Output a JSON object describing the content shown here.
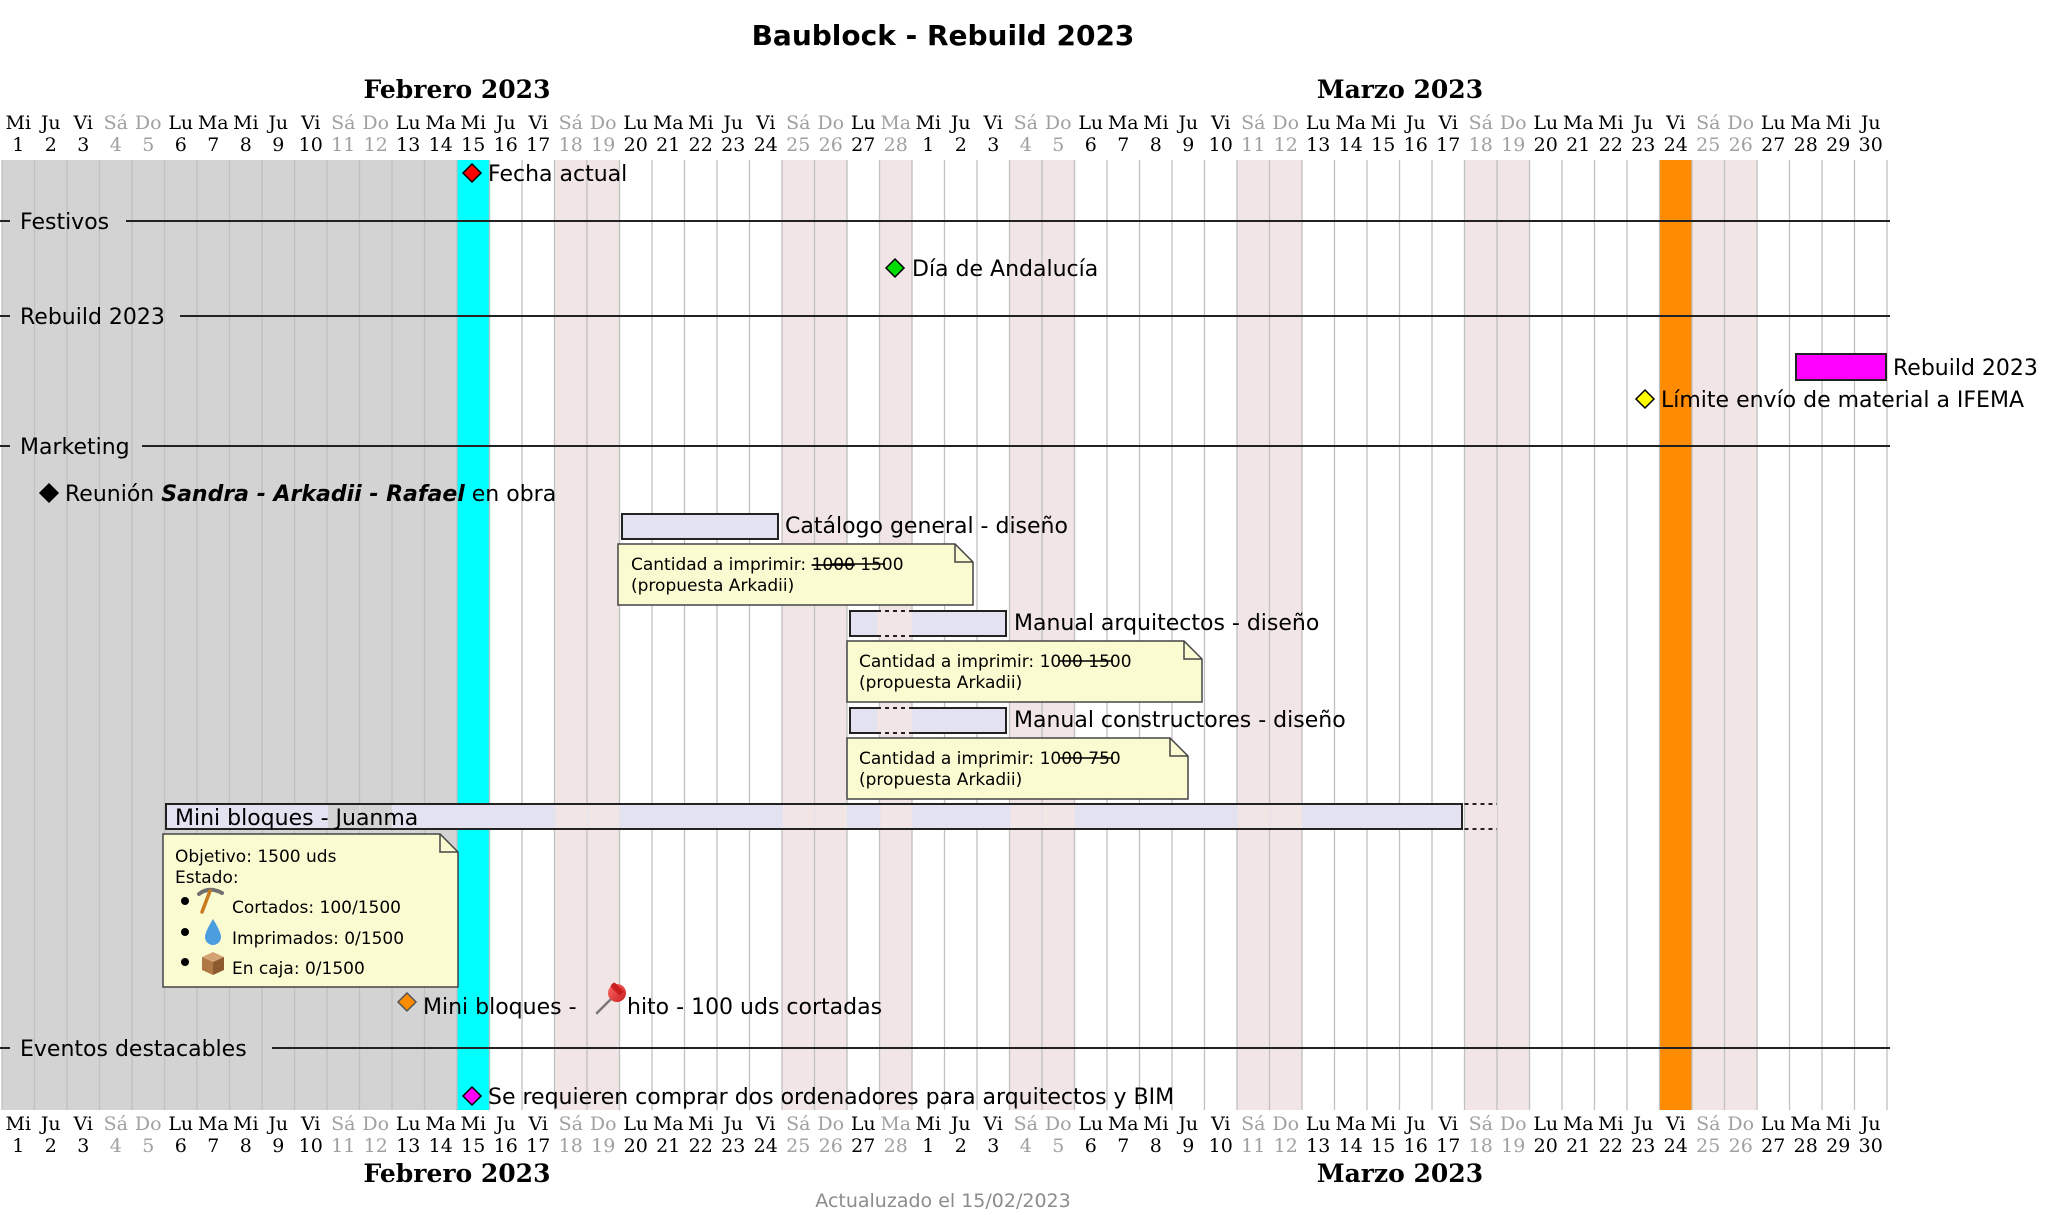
{
  "title": "Baublock - Rebuild 2023",
  "footer": "Actualuzado el 15/02/2023",
  "months": [
    {
      "name": "Febrero 2023",
      "start": 1,
      "end": 28
    },
    {
      "name": "Marzo 2023",
      "start": 29,
      "end": 58
    }
  ],
  "days": [
    {
      "w": "Mi",
      "n": "1"
    },
    {
      "w": "Ju",
      "n": "2"
    },
    {
      "w": "Vi",
      "n": "3"
    },
    {
      "w": "Sá",
      "n": "4",
      "weekend": true
    },
    {
      "w": "Do",
      "n": "5",
      "weekend": true
    },
    {
      "w": "Lu",
      "n": "6"
    },
    {
      "w": "Ma",
      "n": "7"
    },
    {
      "w": "Mi",
      "n": "8"
    },
    {
      "w": "Ju",
      "n": "9"
    },
    {
      "w": "Vi",
      "n": "10"
    },
    {
      "w": "Sá",
      "n": "11",
      "weekend": true
    },
    {
      "w": "Do",
      "n": "12",
      "weekend": true
    },
    {
      "w": "Lu",
      "n": "13"
    },
    {
      "w": "Ma",
      "n": "14"
    },
    {
      "w": "Mi",
      "n": "15"
    },
    {
      "w": "Ju",
      "n": "16"
    },
    {
      "w": "Vi",
      "n": "17"
    },
    {
      "w": "Sá",
      "n": "18",
      "weekend": true
    },
    {
      "w": "Do",
      "n": "19",
      "weekend": true
    },
    {
      "w": "Lu",
      "n": "20"
    },
    {
      "w": "Ma",
      "n": "21"
    },
    {
      "w": "Mi",
      "n": "22"
    },
    {
      "w": "Ju",
      "n": "23"
    },
    {
      "w": "Vi",
      "n": "24"
    },
    {
      "w": "Sá",
      "n": "25",
      "weekend": true
    },
    {
      "w": "Do",
      "n": "26",
      "weekend": true
    },
    {
      "w": "Lu",
      "n": "27"
    },
    {
      "w": "Ma",
      "n": "28",
      "weekend": true
    },
    {
      "w": "Mi",
      "n": "1"
    },
    {
      "w": "Ju",
      "n": "2"
    },
    {
      "w": "Vi",
      "n": "3"
    },
    {
      "w": "Sá",
      "n": "4",
      "weekend": true
    },
    {
      "w": "Do",
      "n": "5",
      "weekend": true
    },
    {
      "w": "Lu",
      "n": "6"
    },
    {
      "w": "Ma",
      "n": "7"
    },
    {
      "w": "Mi",
      "n": "8"
    },
    {
      "w": "Ju",
      "n": "9"
    },
    {
      "w": "Vi",
      "n": "10"
    },
    {
      "w": "Sá",
      "n": "11",
      "weekend": true
    },
    {
      "w": "Do",
      "n": "12",
      "weekend": true
    },
    {
      "w": "Lu",
      "n": "13"
    },
    {
      "w": "Ma",
      "n": "14"
    },
    {
      "w": "Mi",
      "n": "15"
    },
    {
      "w": "Ju",
      "n": "16"
    },
    {
      "w": "Vi",
      "n": "17"
    },
    {
      "w": "Sá",
      "n": "18",
      "weekend": true
    },
    {
      "w": "Do",
      "n": "19",
      "weekend": true
    },
    {
      "w": "Lu",
      "n": "20"
    },
    {
      "w": "Ma",
      "n": "21"
    },
    {
      "w": "Mi",
      "n": "22"
    },
    {
      "w": "Ju",
      "n": "23"
    },
    {
      "w": "Vi",
      "n": "24"
    },
    {
      "w": "Sá",
      "n": "25",
      "weekend": true
    },
    {
      "w": "Do",
      "n": "26",
      "weekend": true
    },
    {
      "w": "Lu",
      "n": "27"
    },
    {
      "w": "Ma",
      "n": "28"
    },
    {
      "w": "Mi",
      "n": "29"
    },
    {
      "w": "Ju",
      "n": "30"
    }
  ],
  "colors": {
    "past": "#d3d3d3",
    "weekend": "#f1e5e5",
    "today": "#00ffff",
    "highlight": "#ff8c00",
    "bar_fill": "#e2e2f0",
    "note_fill": "#fbfbd2",
    "grid": "#c0c0c0"
  },
  "today_label": "Fecha actual",
  "sections": [
    "Festivos",
    "Rebuild 2023",
    "Marketing",
    "Eventos destacables"
  ],
  "milestones": {
    "andalucia": "Día de Andalucía",
    "limite": "Límite envío de material a IFEMA",
    "reunion_pre": "Reunión ",
    "reunion_bold": "Sandra - Arkadii - Rafael",
    "reunion_post": " en obra",
    "hito_pre": "Mini bloques - ",
    "hito_post": " hito - 100 uds cortadas",
    "ordenadores": "Se requieren comprar dos ordenadores para arquitectos y BIM"
  },
  "tasks": {
    "rebuild": "Rebuild 2023",
    "catalogo": "Catálogo general - diseño",
    "arquitectos": "Manual arquitectos - diseño",
    "constructores": "Manual constructores - diseño",
    "mini": "Mini bloques - Juanma"
  },
  "notes": {
    "catalogo": {
      "prefix": "Cantidad a imprimir: ",
      "old": "1000",
      "new": " 1500",
      "line2": "(propuesta Arkadii)"
    },
    "arquitectos": {
      "prefix": "Cantidad a imprimir: ",
      "old": "1000",
      "new": " 1500",
      "line2": "(propuesta Arkadii)"
    },
    "constructores": {
      "prefix": "Cantidad a imprimir: ",
      "old": "1000",
      "new": " 750",
      "line2": "(propuesta Arkadii)"
    },
    "mini": {
      "line1": "Objetivo: 1500 uds",
      "line2": "Estado:",
      "items": [
        {
          "icon": "pickaxe-icon",
          "text": "Cortados: 100/1500"
        },
        {
          "icon": "droplet-icon",
          "text": "Imprimados: 0/1500"
        },
        {
          "icon": "box-icon",
          "text": "En caja: 0/1500"
        }
      ]
    }
  }
}
